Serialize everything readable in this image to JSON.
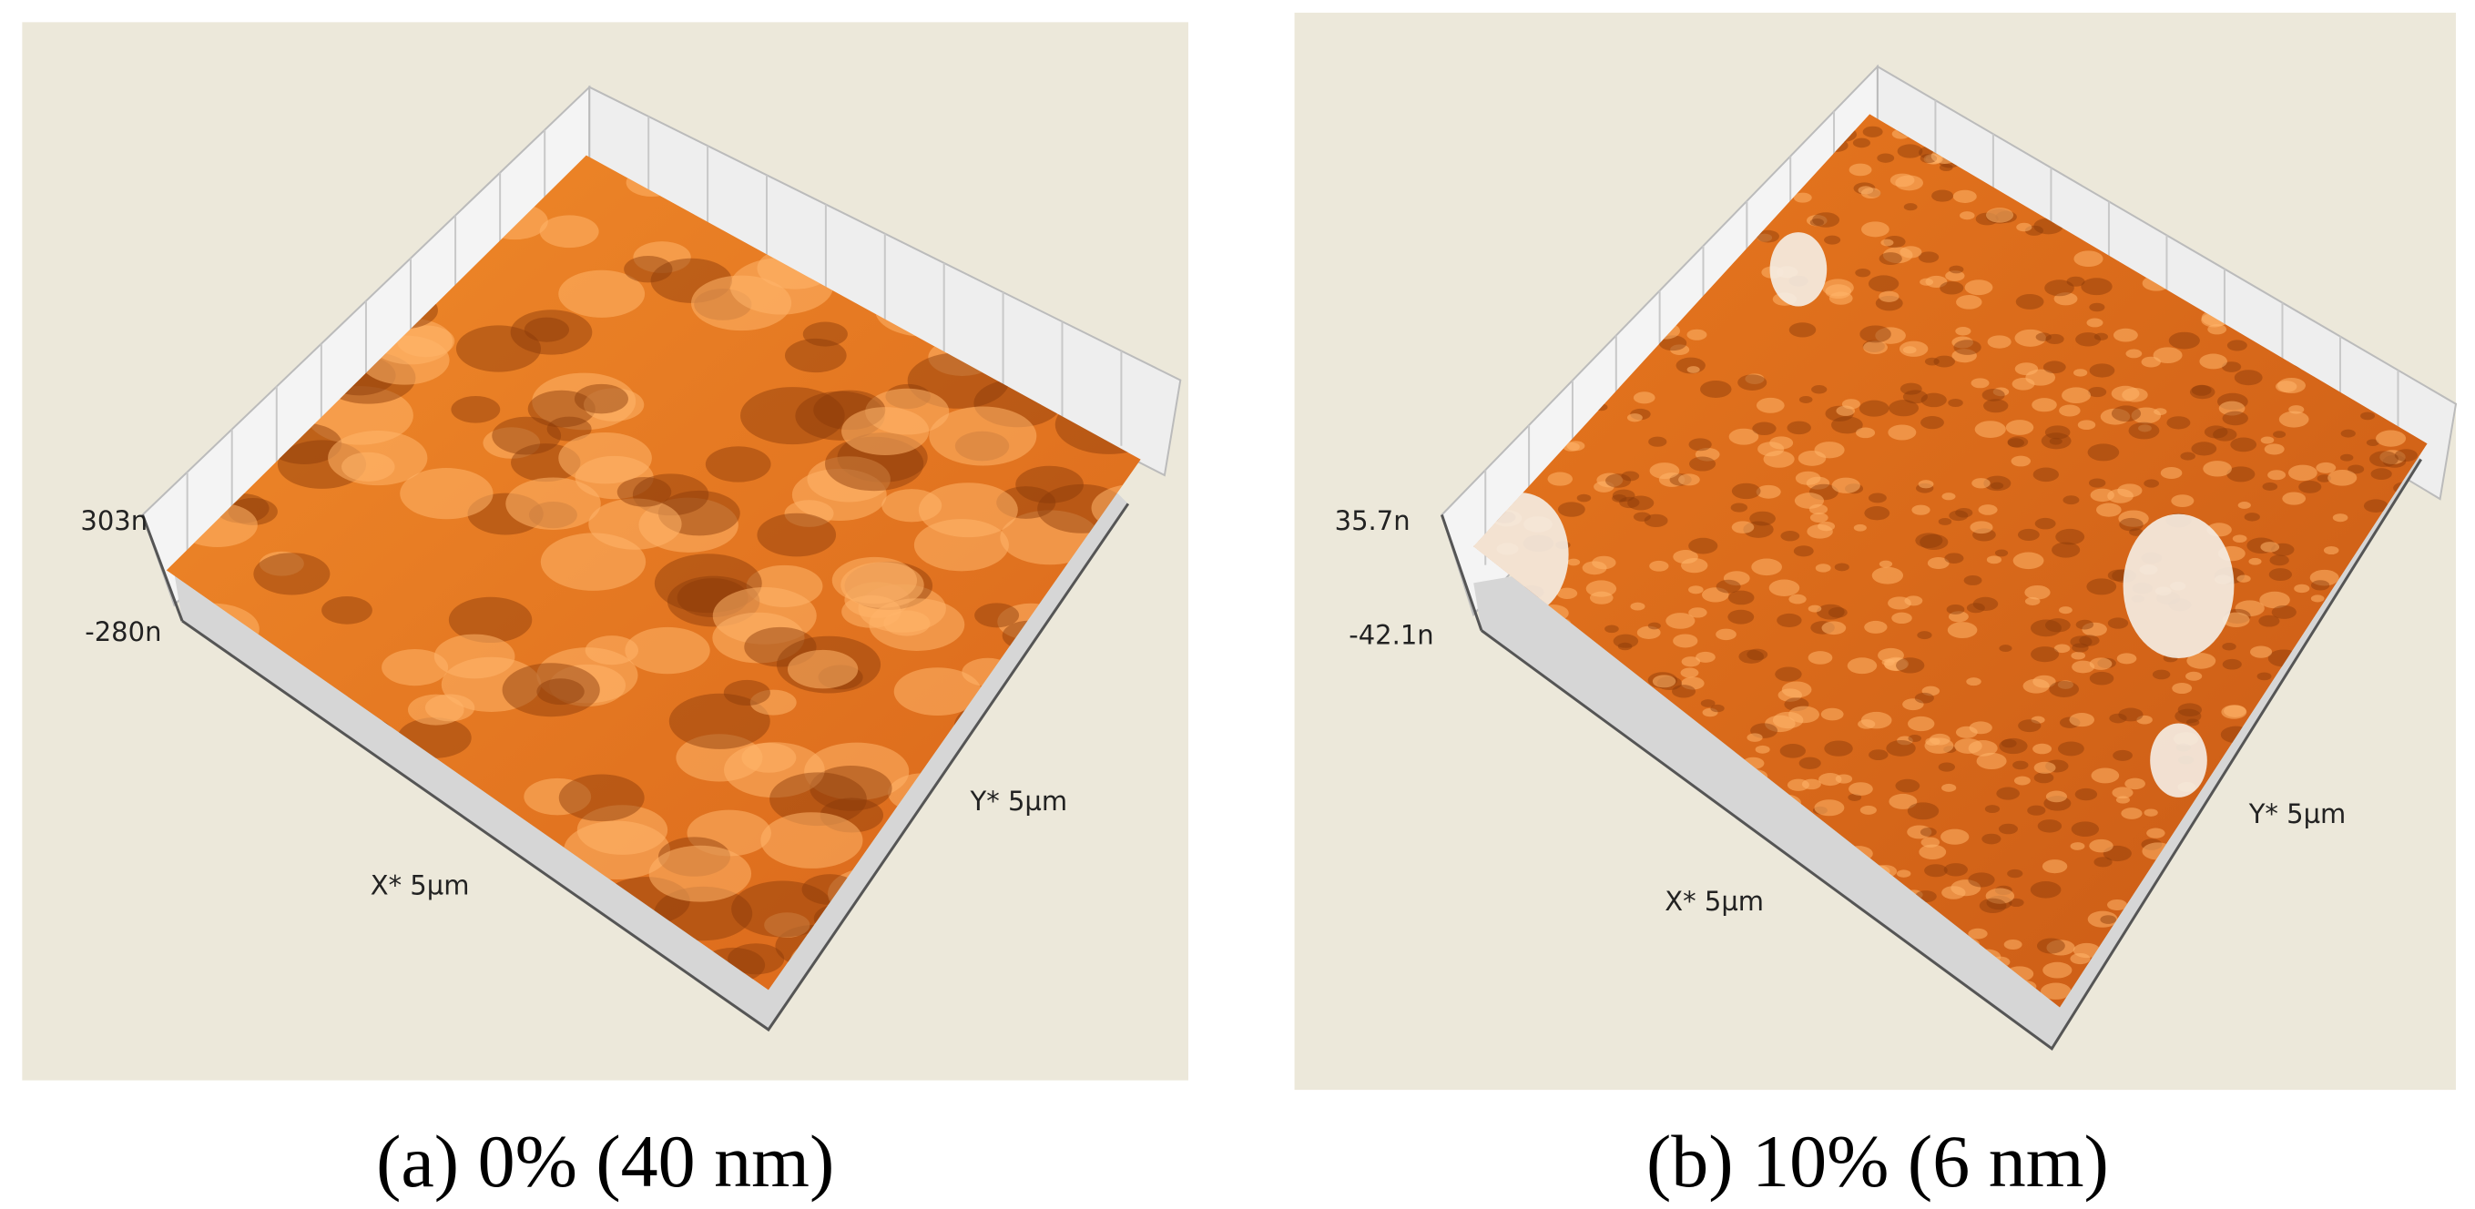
{
  "panels": [
    {
      "z_max": "303n",
      "z_min": "-280n",
      "x_axis": "X* 5µm",
      "y_axis": "Y* 5µm",
      "caption": "(a) 0% (40 nm)"
    },
    {
      "z_max": "35.7n",
      "z_min": "-42.1n",
      "x_axis": "X* 5µm",
      "y_axis": "Y* 5µm",
      "caption": "(b) 10% (6 nm)"
    }
  ]
}
